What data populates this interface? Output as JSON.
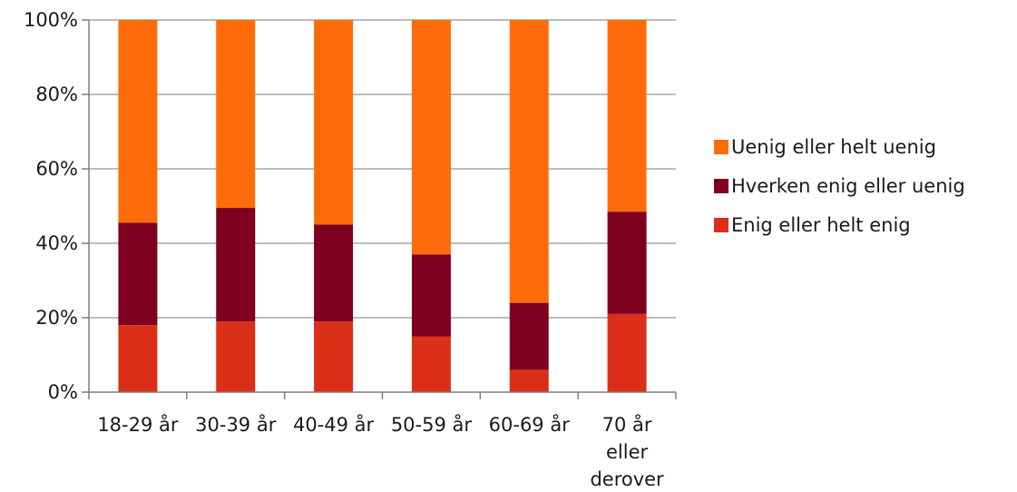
{
  "chart_data": {
    "type": "bar",
    "stacked": true,
    "categories": [
      "18-29 år",
      "30-39 år",
      "40-49 år",
      "50-59 år",
      "60-69 år",
      "70 år eller derover"
    ],
    "series": [
      {
        "name": "Enig eller helt enig",
        "color": "#dc2f18",
        "values": [
          18,
          19,
          19,
          15,
          6,
          21
        ]
      },
      {
        "name": "Hverken enig eller uenig",
        "color": "#7f0020",
        "values": [
          27.5,
          30.5,
          26,
          22,
          18,
          27.5
        ]
      },
      {
        "name": "Uenig eller helt uenig",
        "color": "#ff6b0a",
        "values": [
          54.5,
          50.5,
          55,
          63,
          76,
          51.5
        ]
      }
    ],
    "yticks": [
      "0%",
      "20%",
      "40%",
      "60%",
      "80%",
      "100%"
    ],
    "ylim": [
      0,
      100
    ],
    "legend_order": [
      2,
      1,
      0
    ],
    "legend_position": "right",
    "grid": true,
    "gridline_color": "#a6a6a6",
    "axis_color": "#7f7f7f"
  }
}
